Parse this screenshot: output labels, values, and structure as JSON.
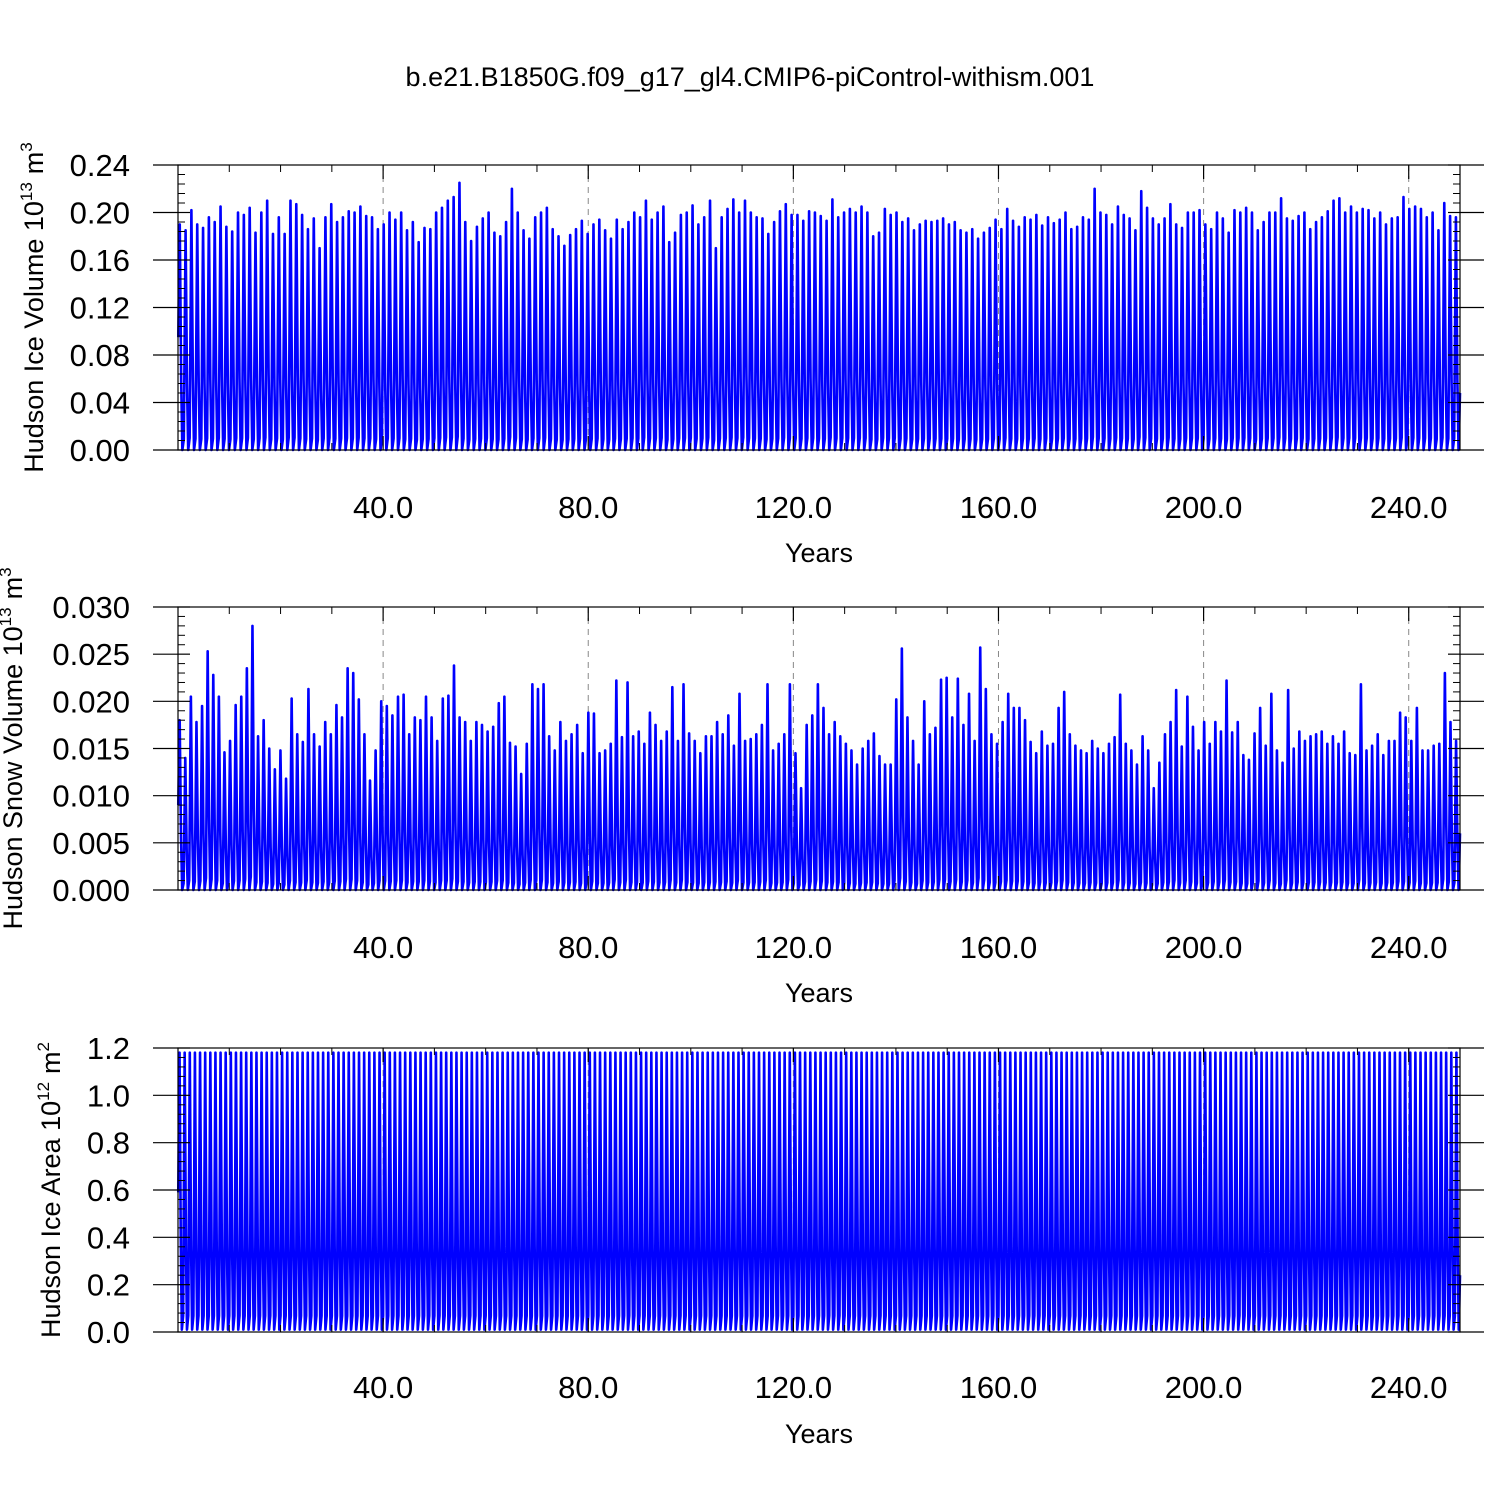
{
  "figure": {
    "title": "b.e21.B1850G.f09_g17_gl4.CMIP6-piControl-withism.001"
  },
  "chart_data": [
    {
      "type": "line",
      "title": "",
      "xlabel": "Years",
      "ylabel": "Hudson Ice Volume 10",
      "ylabel_exp": "13",
      "ylabel_unit": "m",
      "ylabel_unit_exp": "3",
      "xlim": [
        0,
        250
      ],
      "ylim": [
        0,
        0.24
      ],
      "xticks": [
        40,
        80,
        120,
        160,
        200,
        240
      ],
      "xtick_labels": [
        "40.0",
        "80.0",
        "120.0",
        "160.0",
        "200.0",
        "240.0"
      ],
      "yticks": [
        0,
        0.04,
        0.08,
        0.12,
        0.16,
        0.2,
        0.24
      ],
      "ytick_labels": [
        "0.00",
        "0.04",
        "0.08",
        "0.12",
        "0.16",
        "0.20",
        "0.24"
      ],
      "grid": "vertical dashed at major x ticks",
      "line_color": "#0000ff",
      "series": [
        {
          "seasonal_cycle": "annual",
          "annual_max": [
            0.19,
            0.185,
            0.202,
            0.19,
            0.187,
            0.196,
            0.192,
            0.205,
            0.188,
            0.184,
            0.2,
            0.198,
            0.204,
            0.183,
            0.2,
            0.21,
            0.182,
            0.196,
            0.182,
            0.21,
            0.207,
            0.198,
            0.186,
            0.195,
            0.17,
            0.196,
            0.207,
            0.192,
            0.196,
            0.201,
            0.2,
            0.205,
            0.197,
            0.196,
            0.186,
            0.19,
            0.2,
            0.194,
            0.2,
            0.185,
            0.192,
            0.175,
            0.187,
            0.186,
            0.2,
            0.204,
            0.21,
            0.213,
            0.225,
            0.192,
            0.176,
            0.188,
            0.195,
            0.2,
            0.183,
            0.18,
            0.192,
            0.22,
            0.2,
            0.185,
            0.178,
            0.196,
            0.2,
            0.204,
            0.186,
            0.18,
            0.172,
            0.181,
            0.186,
            0.193,
            0.182,
            0.19,
            0.194,
            0.185,
            0.178,
            0.194,
            0.186,
            0.192,
            0.2,
            0.196,
            0.21,
            0.194,
            0.2,
            0.205,
            0.175,
            0.183,
            0.198,
            0.2,
            0.206,
            0.19,
            0.196,
            0.21,
            0.17,
            0.196,
            0.203,
            0.211,
            0.2,
            0.21,
            0.2,
            0.196,
            0.195,
            0.182,
            0.192,
            0.201,
            0.207,
            0.198,
            0.198,
            0.193,
            0.201,
            0.2,
            0.197,
            0.193,
            0.211,
            0.196,
            0.2,
            0.203,
            0.2,
            0.205,
            0.2,
            0.18,
            0.183,
            0.203,
            0.198,
            0.2,
            0.192,
            0.195,
            0.185,
            0.19,
            0.193,
            0.192,
            0.193,
            0.195,
            0.19,
            0.192,
            0.185,
            0.183,
            0.186,
            0.178,
            0.183,
            0.187,
            0.194,
            0.186,
            0.203,
            0.193,
            0.188,
            0.196,
            0.194,
            0.198,
            0.189,
            0.196,
            0.191,
            0.194,
            0.2,
            0.186,
            0.188,
            0.196,
            0.194,
            0.22,
            0.2,
            0.198,
            0.19,
            0.205,
            0.198,
            0.195,
            0.185,
            0.218,
            0.204,
            0.195,
            0.19,
            0.195,
            0.207,
            0.19,
            0.187,
            0.2,
            0.2,
            0.202,
            0.19,
            0.186,
            0.2,
            0.195,
            0.183,
            0.202,
            0.2,
            0.204,
            0.2,
            0.185,
            0.192,
            0.2,
            0.2,
            0.212,
            0.195,
            0.193,
            0.197,
            0.2,
            0.186,
            0.192,
            0.196,
            0.201,
            0.21,
            0.212,
            0.2,
            0.205,
            0.2,
            0.203,
            0.202,
            0.195,
            0.2,
            0.19,
            0.195,
            0.196,
            0.213,
            0.203,
            0.205,
            0.203,
            0.196,
            0.2,
            0.185,
            0.208,
            0.197,
            0.196
          ]
        }
      ]
    },
    {
      "type": "line",
      "title": "",
      "xlabel": "Years",
      "ylabel": "Hudson Snow Volume 10",
      "ylabel_exp": "13",
      "ylabel_unit": "m",
      "ylabel_unit_exp": "3",
      "xlim": [
        0,
        250
      ],
      "ylim": [
        0,
        0.03
      ],
      "xticks": [
        40,
        80,
        120,
        160,
        200,
        240
      ],
      "xtick_labels": [
        "40.0",
        "80.0",
        "120.0",
        "160.0",
        "200.0",
        "240.0"
      ],
      "yticks": [
        0,
        0.005,
        0.01,
        0.015,
        0.02,
        0.025,
        0.03
      ],
      "ytick_labels": [
        "0.000",
        "0.005",
        "0.010",
        "0.015",
        "0.020",
        "0.025",
        "0.030"
      ],
      "grid": "vertical dashed at major x ticks",
      "line_color": "#0000ff",
      "series": [
        {
          "seasonal_cycle": "annual",
          "annual_max": [
            0.018,
            0.014,
            0.0205,
            0.0178,
            0.0195,
            0.0253,
            0.0228,
            0.0205,
            0.0146,
            0.0158,
            0.0196,
            0.0205,
            0.0235,
            0.028,
            0.0163,
            0.018,
            0.015,
            0.0128,
            0.0148,
            0.0118,
            0.0203,
            0.0165,
            0.0157,
            0.0213,
            0.0165,
            0.0152,
            0.0178,
            0.0165,
            0.0196,
            0.0183,
            0.0235,
            0.023,
            0.0202,
            0.0165,
            0.0116,
            0.0148,
            0.02,
            0.0195,
            0.0185,
            0.0205,
            0.0207,
            0.0165,
            0.0183,
            0.018,
            0.0205,
            0.0183,
            0.0158,
            0.0203,
            0.0206,
            0.0238,
            0.0183,
            0.0178,
            0.0158,
            0.0178,
            0.0175,
            0.0168,
            0.0173,
            0.0198,
            0.0205,
            0.0156,
            0.0152,
            0.0123,
            0.0155,
            0.0218,
            0.0213,
            0.0218,
            0.0163,
            0.0148,
            0.0178,
            0.0158,
            0.0165,
            0.0175,
            0.0145,
            0.0188,
            0.0187,
            0.0145,
            0.0148,
            0.0155,
            0.0222,
            0.0162,
            0.022,
            0.0163,
            0.0168,
            0.0155,
            0.0188,
            0.0175,
            0.0158,
            0.0168,
            0.0215,
            0.0158,
            0.0218,
            0.0166,
            0.0158,
            0.0145,
            0.0163,
            0.0163,
            0.0178,
            0.0165,
            0.0185,
            0.0153,
            0.0208,
            0.0158,
            0.016,
            0.0165,
            0.0175,
            0.0218,
            0.0148,
            0.0155,
            0.0165,
            0.0218,
            0.0145,
            0.0108,
            0.0175,
            0.0185,
            0.0218,
            0.0193,
            0.0165,
            0.0178,
            0.0163,
            0.0155,
            0.0148,
            0.0133,
            0.015,
            0.0158,
            0.0166,
            0.0142,
            0.0133,
            0.0133,
            0.0202,
            0.0256,
            0.0183,
            0.0158,
            0.0133,
            0.02,
            0.0165,
            0.0172,
            0.0223,
            0.0225,
            0.0183,
            0.0224,
            0.0175,
            0.0208,
            0.0158,
            0.0257,
            0.0213,
            0.0165,
            0.0155,
            0.0178,
            0.0208,
            0.0193,
            0.0193,
            0.018,
            0.0157,
            0.0145,
            0.0168,
            0.0153,
            0.0155,
            0.0193,
            0.021,
            0.0165,
            0.0153,
            0.0148,
            0.0145,
            0.0158,
            0.015,
            0.0145,
            0.0155,
            0.0162,
            0.0207,
            0.0155,
            0.0148,
            0.0133,
            0.0163,
            0.0148,
            0.0108,
            0.0135,
            0.0165,
            0.0178,
            0.0212,
            0.0152,
            0.0205,
            0.0173,
            0.0148,
            0.0178,
            0.0155,
            0.0178,
            0.0168,
            0.0222,
            0.0167,
            0.0178,
            0.0143,
            0.0138,
            0.0166,
            0.0193,
            0.0153,
            0.0208,
            0.0148,
            0.0135,
            0.0212,
            0.015,
            0.0168,
            0.0158,
            0.0163,
            0.0165,
            0.0168,
            0.0155,
            0.0163,
            0.0155,
            0.0168,
            0.0145,
            0.0143,
            0.0218,
            0.0148,
            0.0153,
            0.0165,
            0.0143,
            0.0158,
            0.0158,
            0.0188,
            0.0183,
            0.0158,
            0.0193,
            0.0148,
            0.0148,
            0.0153,
            0.0155,
            0.023,
            0.0178,
            0.0158
          ]
        }
      ]
    },
    {
      "type": "line",
      "title": "",
      "xlabel": "Years",
      "ylabel": "Hudson Ice Area 10",
      "ylabel_exp": "12",
      "ylabel_unit": "m",
      "ylabel_unit_exp": "2",
      "xlim": [
        0,
        250
      ],
      "ylim": [
        0,
        1.2
      ],
      "xticks": [
        40,
        80,
        120,
        160,
        200,
        240
      ],
      "xtick_labels": [
        "40.0",
        "80.0",
        "120.0",
        "160.0",
        "200.0",
        "240.0"
      ],
      "yticks": [
        0,
        0.2,
        0.4,
        0.6,
        0.8,
        1.0,
        1.2
      ],
      "ytick_labels": [
        "0.0",
        "0.2",
        "0.4",
        "0.6",
        "0.8",
        "1.0",
        "1.2"
      ],
      "grid": "vertical dashed at major x ticks",
      "line_color": "#0000ff",
      "series": [
        {
          "seasonal_cycle": "annual",
          "annual_max_constant": 1.18,
          "annual_min_constant": 0.01
        }
      ]
    }
  ]
}
